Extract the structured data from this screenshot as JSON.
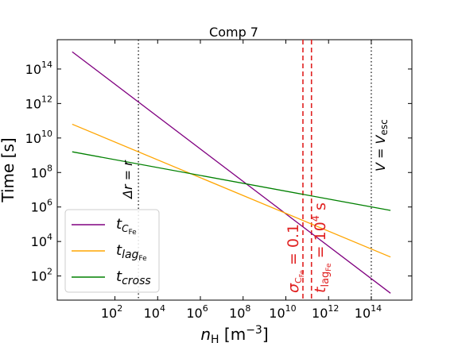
{
  "chart_data": {
    "type": "line",
    "title": "Comp 7",
    "xlabel_main": "n",
    "xlabel_sub": "H",
    "xlabel_unit": " [m",
    "xlabel_exp": "−3",
    "xlabel_close": "]",
    "ylabel": "Time [s]",
    "xscale": "log",
    "yscale": "log",
    "xlim_log10": [
      -0.7,
      15.9
    ],
    "ylim_log10": [
      0.6,
      15.7
    ],
    "xticks": [
      {
        "exp": 2,
        "label_base": "10",
        "label_exp": "2"
      },
      {
        "exp": 4,
        "label_base": "10",
        "label_exp": "4"
      },
      {
        "exp": 6,
        "label_base": "10",
        "label_exp": "6"
      },
      {
        "exp": 8,
        "label_base": "10",
        "label_exp": "8"
      },
      {
        "exp": 10,
        "label_base": "10",
        "label_exp": "10"
      },
      {
        "exp": 12,
        "label_base": "10",
        "label_exp": "12"
      },
      {
        "exp": 14,
        "label_base": "10",
        "label_exp": "14"
      }
    ],
    "yticks": [
      {
        "exp": 2,
        "label_base": "10",
        "label_exp": "2"
      },
      {
        "exp": 4,
        "label_base": "10",
        "label_exp": "4"
      },
      {
        "exp": 6,
        "label_base": "10",
        "label_exp": "6"
      },
      {
        "exp": 8,
        "label_base": "10",
        "label_exp": "8"
      },
      {
        "exp": 10,
        "label_base": "10",
        "label_exp": "10"
      },
      {
        "exp": 12,
        "label_base": "10",
        "label_exp": "12"
      },
      {
        "exp": 14,
        "label_base": "10",
        "label_exp": "14"
      }
    ],
    "series": [
      {
        "key": "tC",
        "legend_main": "t",
        "legend_sub": "C",
        "legend_subsub": "Fe",
        "color": "#800080",
        "x_log10": [
          0,
          14.9
        ],
        "y_log10": [
          15.0,
          1.0
        ]
      },
      {
        "key": "tlag",
        "legend_main": "t",
        "legend_sub": "lag",
        "legend_subsub": "Fe",
        "color": "#FFA500",
        "x_log10": [
          0,
          14.9
        ],
        "y_log10": [
          10.8,
          3.1
        ]
      },
      {
        "key": "tcross",
        "legend_main": "t",
        "legend_sub": "cross",
        "legend_subsub": "",
        "color": "#008000",
        "x_log10": [
          0,
          14.9
        ],
        "y_log10": [
          9.2,
          5.8
        ]
      }
    ],
    "vlines": [
      {
        "key": "dr",
        "x_log10": 3.1,
        "color": "#000000",
        "style": "dotted",
        "label": "Δr = r"
      },
      {
        "key": "vesc",
        "x_log10": 14.0,
        "color": "#000000",
        "style": "dotted",
        "label_main": "V = V",
        "label_sub": "esc"
      },
      {
        "key": "sigma",
        "x_log10": 10.8,
        "color": "#E02020",
        "style": "dashed",
        "label_main": "σ",
        "label_sub": "C",
        "label_subsub": "Fe",
        "label_rest": " = 0.1"
      },
      {
        "key": "tlagline",
        "x_log10": 11.2,
        "color": "#E02020",
        "style": "dashed",
        "label_main": "t",
        "label_sub": "lag",
        "label_subsub": "Fe",
        "label_eq": " = 10",
        "label_exp": "4",
        "label_unit": " s"
      }
    ]
  }
}
